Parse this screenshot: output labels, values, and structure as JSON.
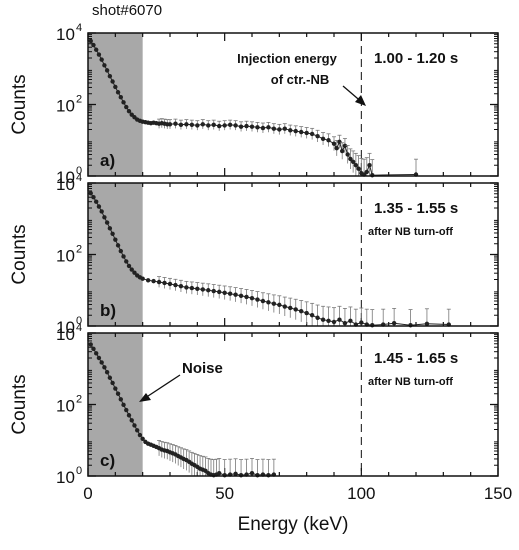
{
  "shot_label": "shot#6070",
  "ylabel": "Counts",
  "xlabel": "Energy (keV)",
  "x_ticks": [
    "0",
    "50",
    "100",
    "150"
  ],
  "colors": {
    "shade": "#a8a8a8",
    "data": "#222222",
    "axis": "#111111"
  },
  "chart_data": [
    {
      "type": "scatter",
      "panel": "a)",
      "time_label": "1.00 - 1.20 s",
      "note": "",
      "annotation": {
        "line1": "Injection energy",
        "line2": "of ctr.-NB"
      },
      "xlim": [
        0,
        150
      ],
      "ylim_log10": [
        0,
        4
      ],
      "y_ticks": [
        {
          "base": "10",
          "exp": "0",
          "value": 1
        },
        {
          "base": "10",
          "exp": "2",
          "value": 100
        },
        {
          "base": "10",
          "exp": "4",
          "value": 10000
        }
      ],
      "shaded_x": [
        0,
        20
      ],
      "dashed_x": 100,
      "series": [
        {
          "x": [
            1,
            2,
            3,
            4,
            5,
            6,
            7,
            8,
            9,
            10,
            11,
            12,
            13,
            14,
            15,
            16,
            17,
            18,
            19,
            20,
            21,
            22,
            23,
            24,
            25,
            26,
            27,
            28,
            29,
            30,
            32,
            34,
            36,
            38,
            40,
            42,
            44,
            46,
            48,
            50,
            52,
            54,
            56,
            58,
            60,
            62,
            64,
            66,
            68,
            70,
            72,
            74,
            76,
            78,
            80,
            82,
            84,
            86,
            88,
            90,
            91,
            92,
            93,
            94,
            95,
            96,
            97,
            98,
            99,
            100,
            101,
            102,
            103,
            104,
            120
          ],
          "y": [
            6000,
            4600,
            3400,
            2500,
            1800,
            1250,
            900,
            620,
            440,
            310,
            220,
            160,
            115,
            85,
            65,
            52,
            44,
            38,
            35,
            33,
            32,
            31,
            30,
            31,
            30,
            29,
            30,
            29,
            28,
            28,
            29,
            27,
            28,
            27,
            26,
            28,
            26,
            27,
            25,
            26,
            27,
            26,
            24,
            25,
            24,
            23,
            22,
            23,
            21,
            20,
            21,
            19,
            18,
            17,
            16,
            15,
            13,
            11,
            10,
            8,
            6,
            9,
            5,
            7,
            4,
            3,
            2.5,
            2,
            1.6,
            1.2,
            1.1,
            1.3,
            2,
            1.05,
            1.1
          ]
        }
      ]
    },
    {
      "type": "scatter",
      "panel": "b)",
      "time_label": "1.35 - 1.55 s",
      "note": "after NB turn-off",
      "annotation": null,
      "xlim": [
        0,
        150
      ],
      "ylim_log10": [
        0,
        4
      ],
      "y_ticks": [
        {
          "base": "10",
          "exp": "0",
          "value": 1
        },
        {
          "base": "10",
          "exp": "2",
          "value": 100
        },
        {
          "base": "10",
          "exp": "4",
          "value": 10000
        }
      ],
      "shaded_x": [
        0,
        20
      ],
      "dashed_x": 100,
      "series": [
        {
          "x": [
            1,
            2,
            3,
            4,
            5,
            6,
            7,
            8,
            9,
            10,
            11,
            12,
            13,
            14,
            15,
            16,
            17,
            18,
            19,
            20,
            22,
            24,
            26,
            28,
            30,
            32,
            34,
            36,
            38,
            40,
            42,
            44,
            46,
            48,
            50,
            52,
            54,
            56,
            58,
            60,
            62,
            64,
            66,
            68,
            70,
            72,
            74,
            76,
            78,
            80,
            82,
            84,
            86,
            88,
            90,
            92,
            94,
            96,
            98,
            100,
            102,
            104,
            108,
            112,
            118,
            124,
            132
          ],
          "y": [
            5200,
            4000,
            3000,
            2200,
            1600,
            1100,
            780,
            540,
            380,
            260,
            180,
            125,
            88,
            64,
            48,
            38,
            31,
            26,
            23,
            21,
            19,
            18,
            17,
            16,
            15,
            14,
            13,
            12,
            11.5,
            11,
            10.5,
            10,
            9.5,
            9,
            8.5,
            8,
            7.5,
            7,
            6.5,
            6,
            5.5,
            5,
            4.6,
            4.2,
            3.9,
            3.5,
            3.2,
            2.9,
            2.6,
            2.3,
            2,
            1.7,
            1.5,
            1.4,
            1.3,
            1.5,
            1.2,
            1.4,
            1.1,
            1.25,
            1.1,
            1.05,
            1.1,
            1.2,
            1.05,
            1.15,
            1.1
          ]
        }
      ]
    },
    {
      "type": "scatter",
      "panel": "c)",
      "time_label": "1.45 - 1.65 s",
      "note": "after NB turn-off",
      "annotation": {
        "label": "Noise"
      },
      "xlim": [
        0,
        150
      ],
      "ylim_log10": [
        0,
        4
      ],
      "y_ticks": [
        {
          "base": "10",
          "exp": "0",
          "value": 1
        },
        {
          "base": "10",
          "exp": "2",
          "value": 100
        },
        {
          "base": "10",
          "exp": "4",
          "value": 10000
        }
      ],
      "shaded_x": [
        0,
        20
      ],
      "dashed_x": 100,
      "series": [
        {
          "x": [
            1,
            2,
            3,
            4,
            5,
            6,
            7,
            8,
            9,
            10,
            11,
            12,
            13,
            14,
            15,
            16,
            17,
            18,
            19,
            20,
            21,
            22,
            23,
            24,
            25,
            26,
            27,
            28,
            29,
            30,
            31,
            32,
            33,
            34,
            35,
            36,
            37,
            38,
            39,
            40,
            41,
            42,
            43,
            44,
            45,
            46,
            47,
            48,
            50,
            52,
            54,
            56,
            58,
            60,
            62,
            64,
            66,
            68
          ],
          "y": [
            4800,
            3600,
            2700,
            2000,
            1500,
            1100,
            800,
            560,
            400,
            280,
            200,
            140,
            98,
            70,
            50,
            36,
            26,
            19,
            14,
            11,
            9,
            8,
            7.5,
            7,
            6.5,
            6,
            5.5,
            5.2,
            5,
            4.6,
            4.3,
            4,
            3.6,
            3.3,
            3,
            2.8,
            2.5,
            2.2,
            2,
            1.8,
            1.6,
            1.5,
            1.4,
            1.2,
            1.1,
            1.05,
            1.1,
            1.2,
            1.05,
            1.1,
            1.15,
            1.05,
            1.1,
            1.2,
            1.05,
            1.1,
            1.05,
            1.1
          ]
        }
      ]
    }
  ]
}
